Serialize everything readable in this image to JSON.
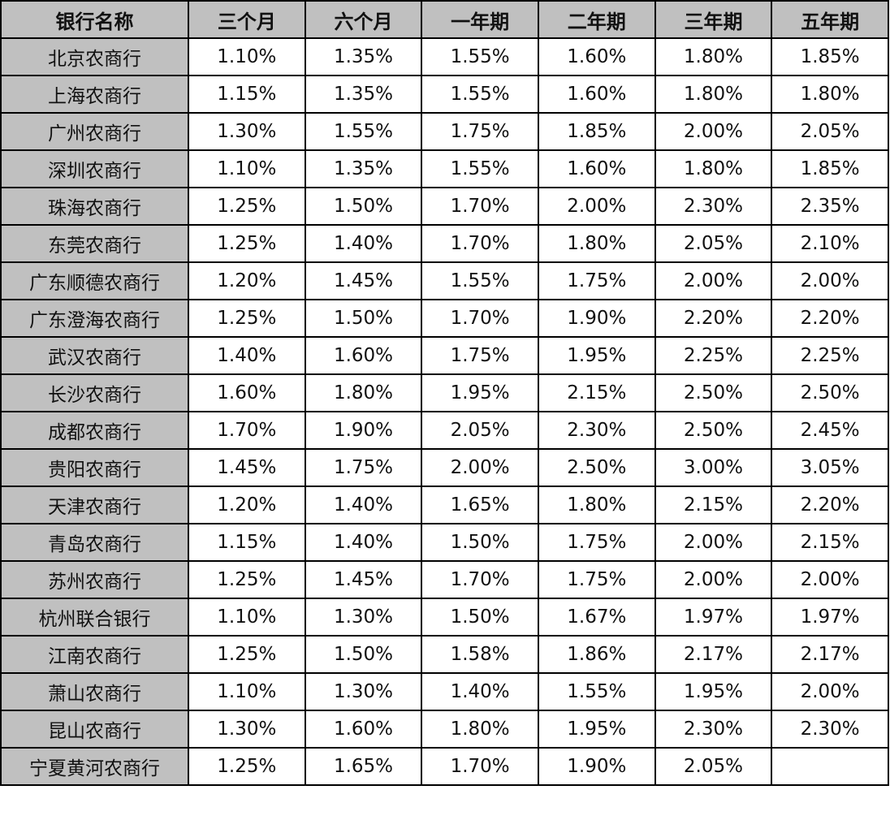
{
  "table": {
    "headers": [
      "银行名称",
      "三个月",
      "六个月",
      "一年期",
      "二年期",
      "三年期",
      "五年期"
    ],
    "rows": [
      [
        "北京农商行",
        "1.10%",
        "1.35%",
        "1.55%",
        "1.60%",
        "1.80%",
        "1.85%"
      ],
      [
        "上海农商行",
        "1.15%",
        "1.35%",
        "1.55%",
        "1.60%",
        "1.80%",
        "1.80%"
      ],
      [
        "广州农商行",
        "1.30%",
        "1.55%",
        "1.75%",
        "1.85%",
        "2.00%",
        "2.05%"
      ],
      [
        "深圳农商行",
        "1.10%",
        "1.35%",
        "1.55%",
        "1.60%",
        "1.80%",
        "1.85%"
      ],
      [
        "珠海农商行",
        "1.25%",
        "1.50%",
        "1.70%",
        "2.00%",
        "2.30%",
        "2.35%"
      ],
      [
        "东莞农商行",
        "1.25%",
        "1.40%",
        "1.70%",
        "1.80%",
        "2.05%",
        "2.10%"
      ],
      [
        "广东顺德农商行",
        "1.20%",
        "1.45%",
        "1.55%",
        "1.75%",
        "2.00%",
        "2.00%"
      ],
      [
        "广东澄海农商行",
        "1.25%",
        "1.50%",
        "1.70%",
        "1.90%",
        "2.20%",
        "2.20%"
      ],
      [
        "武汉农商行",
        "1.40%",
        "1.60%",
        "1.75%",
        "1.95%",
        "2.25%",
        "2.25%"
      ],
      [
        "长沙农商行",
        "1.60%",
        "1.80%",
        "1.95%",
        "2.15%",
        "2.50%",
        "2.50%"
      ],
      [
        "成都农商行",
        "1.70%",
        "1.90%",
        "2.05%",
        "2.30%",
        "2.50%",
        "2.45%"
      ],
      [
        "贵阳农商行",
        "1.45%",
        "1.75%",
        "2.00%",
        "2.50%",
        "3.00%",
        "3.05%"
      ],
      [
        "天津农商行",
        "1.20%",
        "1.40%",
        "1.65%",
        "1.80%",
        "2.15%",
        "2.20%"
      ],
      [
        "青岛农商行",
        "1.15%",
        "1.40%",
        "1.50%",
        "1.75%",
        "2.00%",
        "2.15%"
      ],
      [
        "苏州农商行",
        "1.25%",
        "1.45%",
        "1.70%",
        "1.75%",
        "2.00%",
        "2.00%"
      ],
      [
        "杭州联合银行",
        "1.10%",
        "1.30%",
        "1.50%",
        "1.67%",
        "1.97%",
        "1.97%"
      ],
      [
        "江南农商行",
        "1.25%",
        "1.50%",
        "1.58%",
        "1.86%",
        "2.17%",
        "2.17%"
      ],
      [
        "萧山农商行",
        "1.10%",
        "1.30%",
        "1.40%",
        "1.55%",
        "1.95%",
        "2.00%"
      ],
      [
        "昆山农商行",
        "1.30%",
        "1.60%",
        "1.80%",
        "1.95%",
        "2.30%",
        "2.30%"
      ],
      [
        "宁夏黄河农商行",
        "1.25%",
        "1.65%",
        "1.70%",
        "1.90%",
        "2.05%",
        ""
      ]
    ]
  },
  "colors": {
    "header_bg": "#c0c0c0",
    "name_col_bg": "#c0c0c0",
    "border": "#000000"
  }
}
